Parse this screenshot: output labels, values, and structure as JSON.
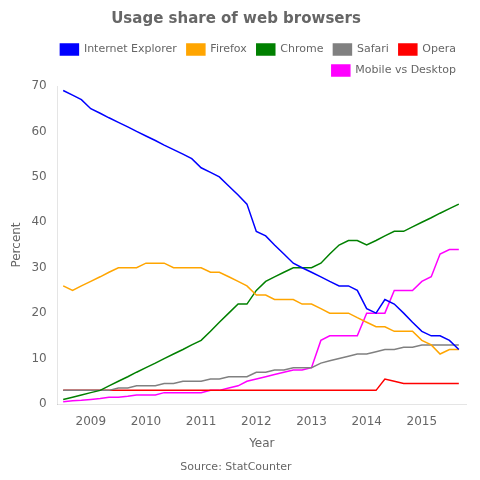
{
  "chart_data": {
    "type": "line",
    "title": "Usage share of web browsers",
    "xlabel": "Year",
    "ylabel": "Percent",
    "annotations": [
      "Source: StatCounter"
    ],
    "x": [
      2008.5,
      2008.67,
      2008.83,
      2009.0,
      2009.17,
      2009.33,
      2009.5,
      2009.67,
      2009.83,
      2010.0,
      2010.17,
      2010.33,
      2010.5,
      2010.67,
      2010.83,
      2011.0,
      2011.17,
      2011.33,
      2011.5,
      2011.67,
      2011.83,
      2012.0,
      2012.17,
      2012.33,
      2012.5,
      2012.67,
      2012.83,
      2013.0,
      2013.17,
      2013.33,
      2013.5,
      2013.67,
      2013.83,
      2014.0,
      2014.17,
      2014.33,
      2014.5,
      2014.67,
      2014.83,
      2015.0,
      2015.17,
      2015.33,
      2015.5,
      2015.67
    ],
    "series": [
      {
        "name": "Internet Explorer",
        "color": "blue",
        "values": [
          69,
          68,
          67,
          65,
          64,
          63,
          62,
          61,
          60,
          59,
          58,
          57,
          56,
          55,
          54,
          52,
          51,
          50,
          48,
          46,
          44,
          38,
          37,
          35,
          33,
          31,
          30,
          29,
          28,
          27,
          26,
          26,
          25,
          21,
          20,
          23,
          22,
          20,
          18,
          16,
          15,
          15,
          14,
          12
        ]
      },
      {
        "name": "Firefox",
        "color": "orange",
        "values": [
          26,
          25,
          26,
          27,
          28,
          29,
          30,
          30,
          30,
          31,
          31,
          31,
          30,
          30,
          30,
          30,
          29,
          29,
          28,
          27,
          26,
          24,
          24,
          23,
          23,
          23,
          22,
          22,
          21,
          20,
          20,
          20,
          19,
          18,
          17,
          17,
          16,
          16,
          16,
          14,
          13,
          11,
          12,
          12
        ]
      },
      {
        "name": "Chrome",
        "color": "green",
        "values": [
          1,
          1.5,
          2,
          2.5,
          3,
          4,
          5,
          6,
          7,
          8,
          9,
          10,
          11,
          12,
          13,
          14,
          16,
          18,
          20,
          22,
          22,
          25,
          27,
          28,
          29,
          30,
          30,
          30,
          31,
          33,
          35,
          36,
          36,
          35,
          36,
          37,
          38,
          38,
          39,
          40,
          41,
          42,
          43,
          44
        ]
      },
      {
        "name": "Safari",
        "color": "gray",
        "values": [
          3,
          3,
          3,
          3,
          3,
          3,
          3.5,
          3.5,
          4,
          4,
          4,
          4.5,
          4.5,
          5,
          5,
          5,
          5.5,
          5.5,
          6,
          6,
          6,
          7,
          7,
          7.5,
          7.5,
          8,
          8,
          8,
          9,
          9.5,
          10,
          10.5,
          11,
          11,
          11.5,
          12,
          12,
          12.5,
          12.5,
          13,
          13,
          13,
          13,
          13
        ]
      },
      {
        "name": "Opera",
        "color": "red",
        "values": [
          3,
          3,
          3,
          3,
          3,
          3,
          3,
          3,
          3,
          3,
          3,
          3,
          3,
          3,
          3,
          3,
          3,
          3,
          3,
          3,
          3,
          3,
          3,
          3,
          3,
          3,
          3,
          3,
          3,
          3,
          3,
          3,
          3,
          3,
          3,
          5.5,
          5,
          4.5,
          4.5,
          4.5,
          4.5,
          4.5,
          4.5,
          4.5
        ]
      },
      {
        "name": "Mobile vs Desktop",
        "color": "magenta",
        "values": [
          0.5,
          0.7,
          0.8,
          1,
          1.2,
          1.5,
          1.5,
          1.7,
          2,
          2,
          2,
          2.5,
          2.5,
          2.5,
          2.5,
          2.5,
          3,
          3,
          3.5,
          4,
          5,
          5.5,
          6,
          6.5,
          7,
          7.5,
          7.5,
          8,
          14,
          15,
          15,
          15,
          15,
          20,
          20,
          20,
          25,
          25,
          25,
          27,
          28,
          33,
          34,
          34
        ]
      }
    ],
    "xlim": [
      2008.4,
      2015.8
    ],
    "xticks": [
      2009,
      2010,
      2011,
      2012,
      2013,
      2014,
      2015
    ],
    "ylim": [
      0,
      70
    ],
    "yticks": [
      0,
      10,
      20,
      30,
      40,
      50,
      60,
      70
    ],
    "grid": false,
    "legend": "upper right"
  }
}
